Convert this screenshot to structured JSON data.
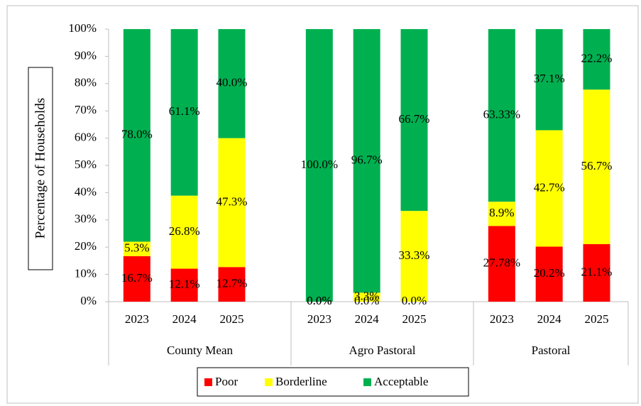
{
  "chart_data": {
    "type": "stacked_bar",
    "y_axis_label": "Percentage of Households",
    "categories": [
      "2023",
      "2024",
      "2025",
      "2023",
      "2024",
      "2025",
      "2023",
      "2024",
      "2025"
    ],
    "category_groups": [
      "County Mean",
      "Agro Pastoral",
      "Pastoral"
    ],
    "series": [
      {
        "name": "Poor",
        "color": "#ff0000",
        "values": [
          16.7,
          12.1,
          12.7,
          0.0,
          0.0,
          0.0,
          27.78,
          20.2,
          21.1
        ],
        "value_labels": [
          "16.7%",
          "12.1%",
          "12.7%",
          "0.0%",
          "0.0%",
          "0.0%",
          "27.78%",
          "20.2%",
          "21.1%"
        ]
      },
      {
        "name": "Borderline",
        "color": "#ffff00",
        "values": [
          5.3,
          26.8,
          47.3,
          0.0,
          3.3,
          33.3,
          8.9,
          42.7,
          56.7
        ],
        "value_labels": [
          "5.3%",
          "26.8%",
          "47.3%",
          "0.0%",
          "3.3%",
          "33.3%",
          "8.9%",
          "42.7%",
          "56.7%"
        ]
      },
      {
        "name": "Acceptable",
        "color": "#00b050",
        "values": [
          78.0,
          61.1,
          40.0,
          100.0,
          96.7,
          66.7,
          63.33,
          37.1,
          22.2
        ],
        "value_labels": [
          "78.0%",
          "61.1%",
          "40.0%",
          "100.0%",
          "96.7%",
          "66.7%",
          "63.33%",
          "37.1%",
          "22.2%"
        ]
      }
    ],
    "ylim": [
      0,
      100
    ],
    "yticks": [
      {
        "value": 0,
        "label": "0%"
      },
      {
        "value": 10,
        "label": "10%"
      },
      {
        "value": 20,
        "label": "20%"
      },
      {
        "value": 30,
        "label": "30%"
      },
      {
        "value": 40,
        "label": "40%"
      },
      {
        "value": 50,
        "label": "50%"
      },
      {
        "value": 60,
        "label": "60%"
      },
      {
        "value": 70,
        "label": "70%"
      },
      {
        "value": 80,
        "label": "80%"
      },
      {
        "value": 90,
        "label": "90%"
      },
      {
        "value": 100,
        "label": "100%"
      }
    ],
    "legend": "bottom"
  }
}
